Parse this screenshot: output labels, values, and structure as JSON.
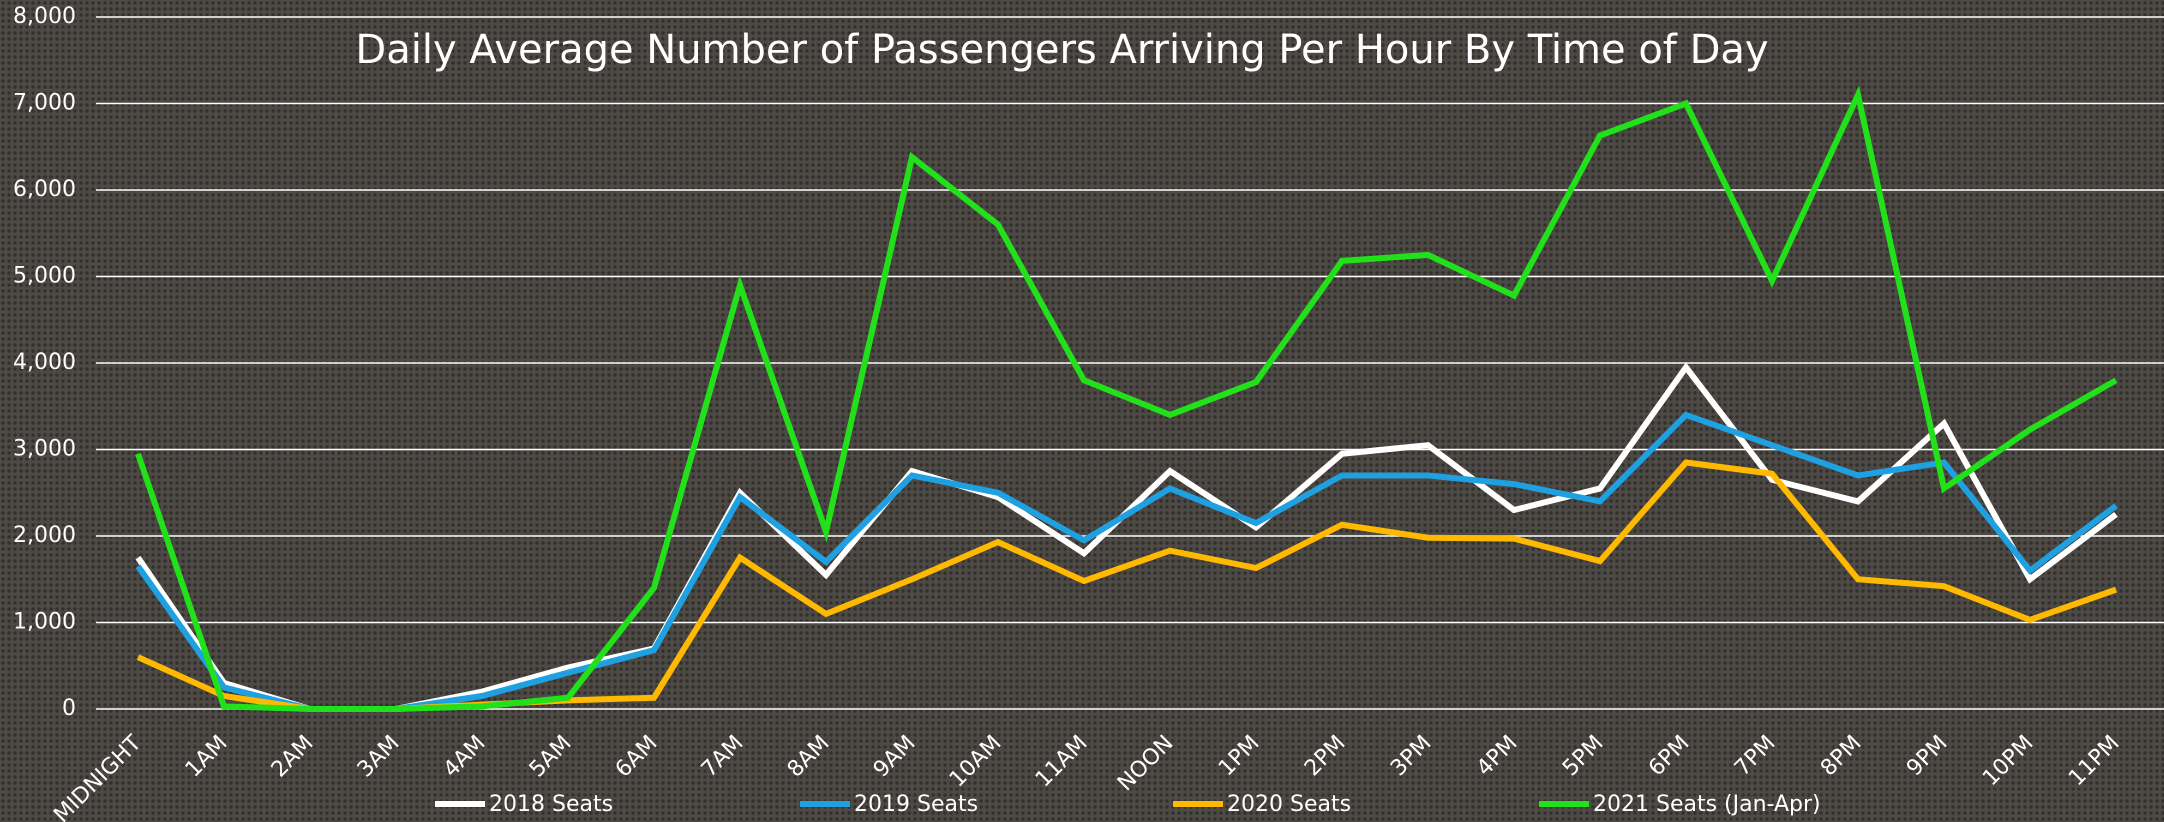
{
  "chart_data": {
    "type": "line",
    "title": "Daily Average Number of Passengers Arriving Per Hour By Time of Day",
    "categories": [
      "MIDNIGHT",
      "1AM",
      "2AM",
      "3AM",
      "4AM",
      "5AM",
      "6AM",
      "7AM",
      "8AM",
      "9AM",
      "10AM",
      "11AM",
      "NOON",
      "1PM",
      "2PM",
      "3PM",
      "4PM",
      "5PM",
      "6PM",
      "7PM",
      "8PM",
      "9PM",
      "10PM",
      "11PM"
    ],
    "series": [
      {
        "name": "2018 Seats",
        "color": "#ffffff",
        "values": [
          1750,
          300,
          0,
          0,
          200,
          480,
          700,
          2500,
          1550,
          2750,
          2450,
          1800,
          2750,
          2100,
          2950,
          3050,
          2300,
          2550,
          3950,
          2650,
          2400,
          3300,
          1500,
          2250
        ]
      },
      {
        "name": "2019 Seats",
        "color": "#1fa0e0",
        "values": [
          1650,
          250,
          0,
          0,
          150,
          420,
          680,
          2450,
          1700,
          2700,
          2500,
          1950,
          2550,
          2150,
          2700,
          2700,
          2600,
          2400,
          3400,
          3050,
          2700,
          2850,
          1600,
          2350
        ]
      },
      {
        "name": "2020 Seats",
        "color": "#ffb900",
        "values": [
          600,
          150,
          0,
          0,
          50,
          100,
          130,
          1750,
          1100,
          1500,
          1930,
          1480,
          1830,
          1630,
          2130,
          1980,
          1970,
          1710,
          2850,
          2720,
          1500,
          1420,
          1030,
          1380
        ]
      },
      {
        "name": "2021 Seats (Jan-Apr)",
        "color": "#22e01a",
        "values": [
          2950,
          30,
          0,
          0,
          30,
          130,
          1400,
          4900,
          2050,
          6380,
          5600,
          3800,
          3400,
          3780,
          5180,
          5250,
          4780,
          6630,
          7000,
          4950,
          7100,
          2550,
          3230,
          3800
        ]
      }
    ],
    "ylim": [
      0,
      8000
    ],
    "yticks": [
      0,
      {
        "value": 1000,
        "label": "1,000"
      },
      {
        "value": 2000,
        "label": "2,000"
      },
      {
        "value": 3000,
        "label": "3,000"
      },
      {
        "value": 4000,
        "label": "4,000"
      },
      {
        "value": 5000,
        "label": "5,000"
      },
      {
        "value": 6000,
        "label": "6,000"
      },
      {
        "value": 7000,
        "label": "7,000"
      },
      {
        "value": 8000,
        "label": "8,000"
      }
    ],
    "grid": true,
    "legend": "bottom"
  }
}
